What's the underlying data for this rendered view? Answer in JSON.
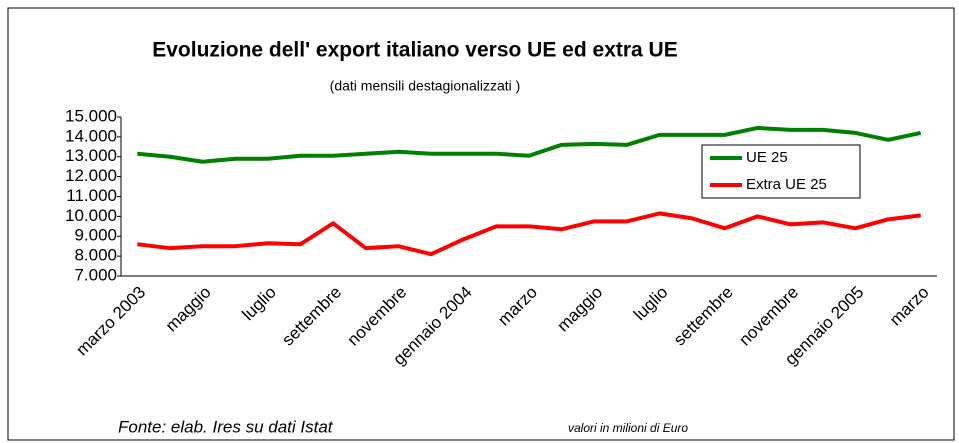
{
  "chart_data": {
    "type": "line",
    "title": "Evoluzione dell' export italiano verso UE ed extra UE",
    "subtitle": "(dati mensili destagionalizzati )",
    "categories": [
      "marzo 2003",
      null,
      "maggio",
      null,
      "luglio",
      null,
      "settembre",
      null,
      "novembre",
      null,
      "gennaio 2004",
      null,
      "marzo",
      null,
      "maggio",
      null,
      "luglio",
      null,
      "settembre",
      null,
      "novembre",
      null,
      "gennaio 2005",
      null,
      "marzo"
    ],
    "series": [
      {
        "name": "UE 25",
        "color": "#008000",
        "values": [
          13150,
          13000,
          12750,
          12900,
          12900,
          13050,
          13050,
          13150,
          13250,
          13150,
          13150,
          13150,
          13050,
          13600,
          13650,
          13600,
          14100,
          14100,
          14100,
          14450,
          14350,
          14350,
          14200,
          13850,
          14200
        ]
      },
      {
        "name": "Extra UE 25",
        "color": "#ff0000",
        "values": [
          8600,
          8400,
          8500,
          8500,
          8650,
          8600,
          9650,
          8400,
          8500,
          8100,
          8850,
          9500,
          9500,
          9350,
          9750,
          9750,
          10150,
          9900,
          9400,
          10000,
          9600,
          9700,
          9400,
          9850,
          10050
        ]
      }
    ],
    "ylim": [
      7000,
      15000
    ],
    "yticks": [
      {
        "value": 7000,
        "label": "7.000"
      },
      {
        "value": 8000,
        "label": "8.000"
      },
      {
        "value": 9000,
        "label": "9.000"
      },
      {
        "value": 10000,
        "label": "10.000"
      },
      {
        "value": 11000,
        "label": "11.000"
      },
      {
        "value": 12000,
        "label": "12.000"
      },
      {
        "value": 13000,
        "label": "13.000"
      },
      {
        "value": 14000,
        "label": "14.000"
      },
      {
        "value": 15000,
        "label": "15.000"
      }
    ],
    "grid": false,
    "legend": "right",
    "source": "Fonte: elab. Ires su dati Istat",
    "note": "valori in milioni di Euro"
  }
}
